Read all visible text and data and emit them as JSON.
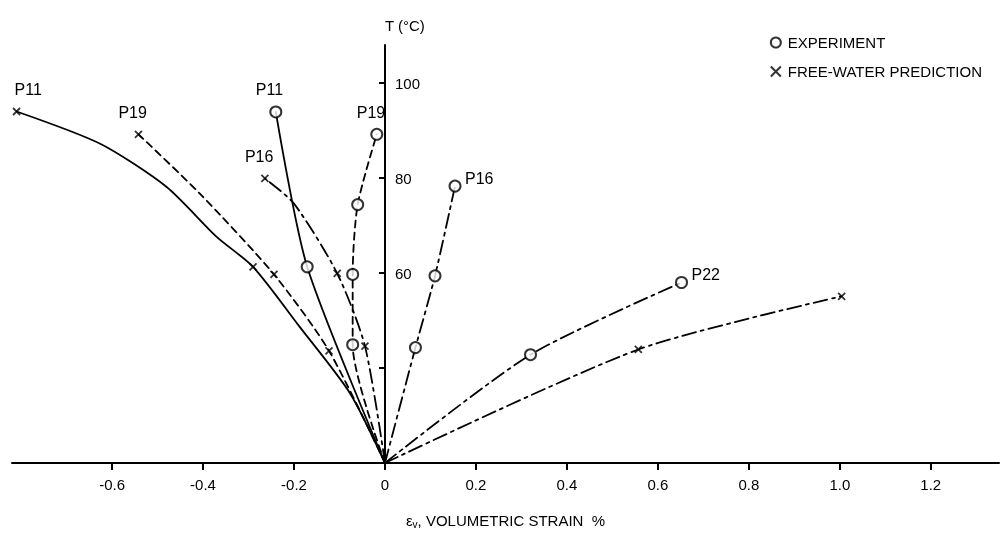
{
  "chart_data": {
    "type": "line",
    "xlabel": "ε$_{v}$, VOLUMETRIC STRAIN  %",
    "ylabel": "T (°C)",
    "xlim": [
      -0.82,
      1.35
    ],
    "xticks": [
      -0.6,
      -0.4,
      -0.2,
      0,
      0.2,
      0.4,
      0.6,
      0.8,
      {
        "value": 1,
        "label": "1.0"
      },
      1.2
    ],
    "ylim": [
      20,
      108
    ],
    "yticks": [
      {
        "value": 40,
        "label": null
      },
      60,
      80,
      100
    ],
    "grid": false,
    "legend": "top right",
    "series": [
      {
        "name": "P11",
        "color": "#000000",
        "line_style": "solid",
        "marker": "none",
        "x": [
          0,
          -0.077,
          -0.187,
          -0.29,
          -0.37,
          -0.48,
          -0.626,
          -0.81
        ],
        "values": [
          20,
          34.7,
          48.6,
          61.3,
          67.6,
          78.1,
          87.2,
          94
        ]
      },
      {
        "name": "P19",
        "color": "#000000",
        "line_style": "dashed",
        "marker": "none",
        "x": [
          0,
          -0.123,
          -0.244,
          -0.407,
          -0.542
        ],
        "values": [
          20,
          43.6,
          59.7,
          76.7,
          89.2
        ]
      },
      {
        "name": "P16",
        "color": "#000000",
        "line_style": "dashdot",
        "marker": "none",
        "x": [
          0,
          -0.044,
          -0.105,
          -0.2,
          -0.264
        ],
        "values": [
          20,
          44.6,
          59.9,
          74.6,
          79.9
        ]
      },
      {
        "name": "P11",
        "color": "#000000",
        "line_style": "solid",
        "marker": "none",
        "x": [
          0,
          -0.171,
          -0.24
        ],
        "values": [
          20,
          61.3,
          93.9
        ]
      },
      {
        "name": "P19",
        "color": "#000000",
        "line_style": "dashed",
        "marker": "none",
        "x": [
          0,
          -0.071,
          -0.071,
          -0.06,
          -0.018
        ],
        "values": [
          20,
          44.9,
          59.7,
          74.4,
          89.2
        ]
      },
      {
        "name": "P16",
        "color": "#000000",
        "line_style": "dashdot",
        "marker": "none",
        "x": [
          0,
          0.067,
          0.11,
          0.154
        ],
        "values": [
          20,
          44.3,
          59.4,
          78.3
        ]
      },
      {
        "name": "P22",
        "color": "#000000",
        "line_style": "dashdot",
        "marker": "none",
        "x": [
          0,
          0.32,
          0.652
        ],
        "values": [
          20,
          42.8,
          58
        ]
      },
      {
        "color": "#000000",
        "line_style": "dashdot",
        "marker": "none",
        "x": [
          0,
          0.557,
          1.004
        ],
        "values": [
          20,
          43.9,
          55.1
        ]
      },
      {
        "type": "scatter",
        "name": "EXPERIMENT",
        "color": "#000000",
        "marker": "circle",
        "x": [
          -0.24,
          -0.171,
          -0.018,
          -0.06,
          -0.071,
          -0.071,
          0.154,
          0.11,
          0.067,
          0.652,
          0.32
        ],
        "values": [
          93.9,
          61.3,
          89.2,
          74.4,
          59.7,
          44.9,
          78.3,
          59.4,
          44.3,
          58,
          42.8
        ]
      },
      {
        "type": "scatter",
        "name": "FREE-WATER PREDICTION",
        "color": "#000000",
        "marker": "cross",
        "x": [
          -0.81,
          -0.29,
          -0.542,
          -0.244,
          -0.123,
          -0.264,
          -0.105,
          -0.044,
          1.004,
          0.557
        ],
        "values": [
          94,
          61.3,
          89.2,
          59.7,
          43.6,
          79.9,
          59.9,
          44.6,
          55.1,
          43.9
        ]
      }
    ]
  }
}
